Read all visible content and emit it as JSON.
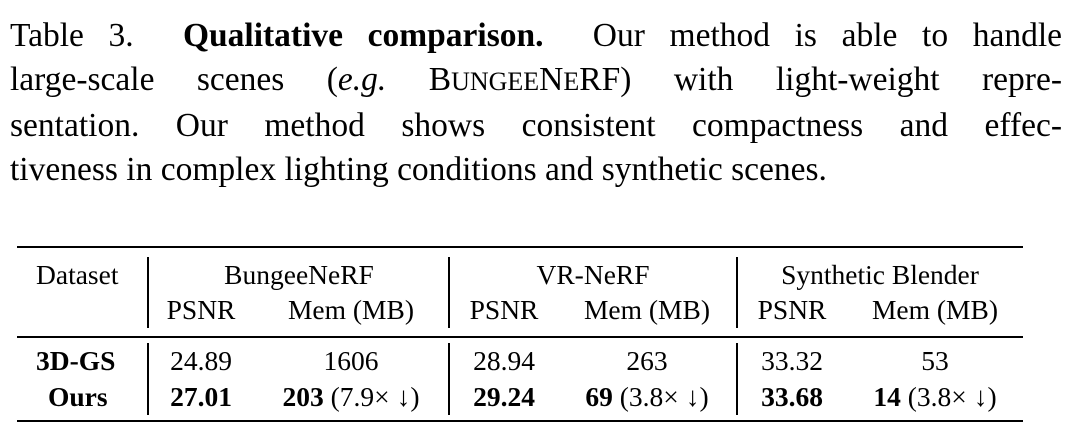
{
  "caption": {
    "label": "Table 3.",
    "title": "Qualitative comparison.",
    "lines": [
      "Our method is able to handle",
      "large-scale scenes (",
      "e.g.",
      " B",
      "UNGEE",
      "N",
      "E",
      "RF",
      ") with light-weight repre-",
      "sentation.  Our method shows consistent compactness and effec-",
      "tiveness in complex lighting conditions and synthetic scenes."
    ]
  },
  "table": {
    "row_header": "Dataset",
    "groups": [
      "BungeeNeRF",
      "VR-NeRF",
      "Synthetic Blender"
    ],
    "metrics": [
      "PSNR",
      "Mem (MB)"
    ],
    "rows": [
      {
        "method": "3D-GS",
        "cells": [
          {
            "psnr": "24.89",
            "mem": "1606",
            "reduction": ""
          },
          {
            "psnr": "28.94",
            "mem": "263",
            "reduction": ""
          },
          {
            "psnr": "33.32",
            "mem": "53",
            "reduction": ""
          }
        ]
      },
      {
        "method": "Ours",
        "cells": [
          {
            "psnr": "27.01",
            "mem": "203",
            "reduction": "(7.9× ↓)"
          },
          {
            "psnr": "29.24",
            "mem": "69",
            "reduction": "(3.8× ↓)"
          },
          {
            "psnr": "33.68",
            "mem": "14",
            "reduction": "(3.8× ↓)"
          }
        ]
      }
    ]
  }
}
